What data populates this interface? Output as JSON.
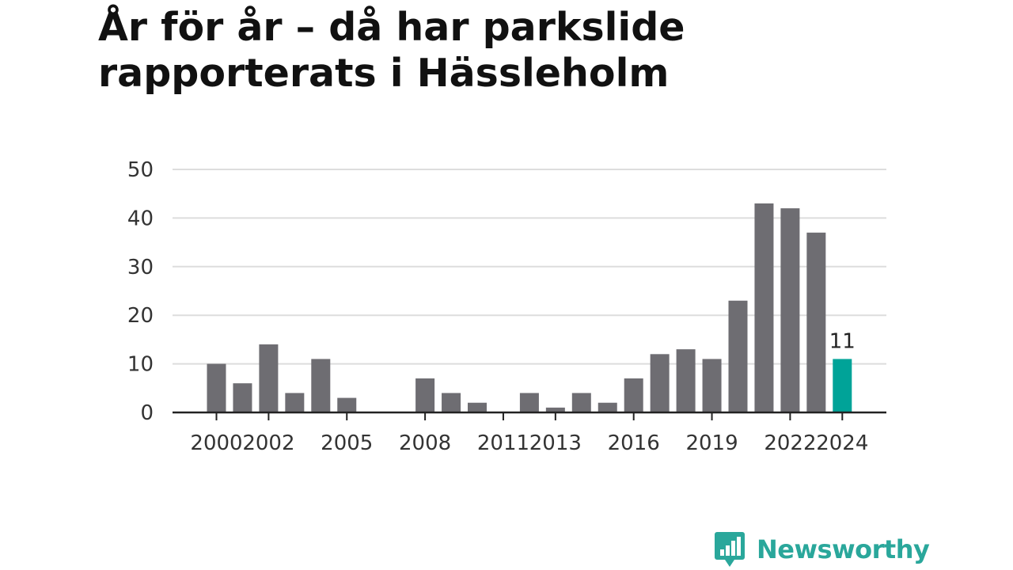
{
  "title": "År för år – då har parkslide rapporterats i Hässleholm",
  "brand": {
    "name": "Newsworthy",
    "icon": "bar-chart-badge-icon",
    "color": "#2aa79b"
  },
  "colors": {
    "bar": "#6e6d72",
    "highlight": "#00a398",
    "grid": "#dddddd",
    "axis": "#222222"
  },
  "chart_data": {
    "type": "bar",
    "title": "År för år – då har parkslide rapporterats i Hässleholm",
    "xlabel": "",
    "ylabel": "",
    "ylim": [
      0,
      50
    ],
    "yticks": [
      0,
      10,
      20,
      30,
      40,
      50
    ],
    "grid": true,
    "categories": [
      2000,
      2001,
      2002,
      2003,
      2004,
      2005,
      2006,
      2007,
      2008,
      2009,
      2010,
      2011,
      2012,
      2013,
      2014,
      2015,
      2016,
      2017,
      2018,
      2019,
      2020,
      2021,
      2022,
      2023,
      2024
    ],
    "values": [
      10,
      6,
      14,
      4,
      11,
      3,
      0,
      0,
      7,
      4,
      2,
      0,
      4,
      1,
      4,
      2,
      7,
      12,
      13,
      11,
      23,
      43,
      42,
      37,
      11
    ],
    "xtick_labels": [
      "2000",
      "2002",
      "2005",
      "2008",
      "2011",
      "2013",
      "2016",
      "2019",
      "2022",
      "2024"
    ],
    "highlight": {
      "category": 2024,
      "label": "11"
    }
  }
}
